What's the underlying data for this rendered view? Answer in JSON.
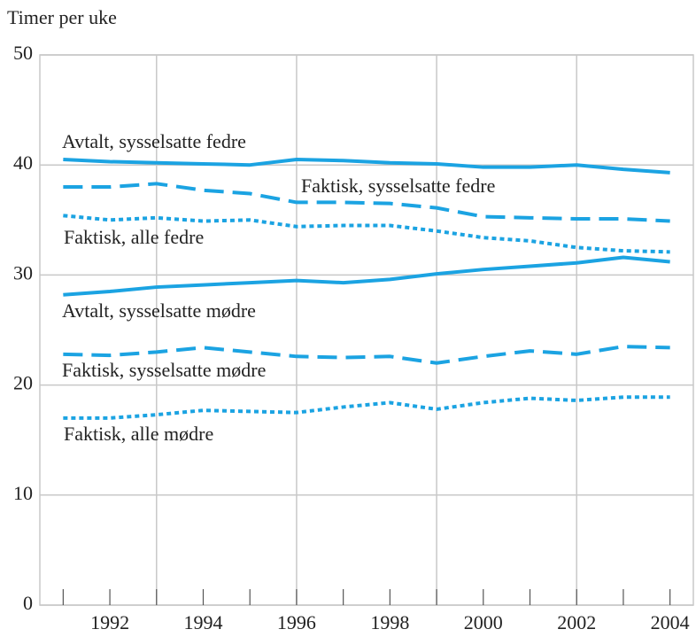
{
  "chart_data": {
    "type": "line",
    "y_label": "Timer per uke",
    "x": [
      1991,
      1992,
      1993,
      1994,
      1995,
      1996,
      1997,
      1998,
      1999,
      2000,
      2001,
      2002,
      2003,
      2004
    ],
    "xlim": [
      1990.5,
      2004.5
    ],
    "xticks": [
      1992,
      1994,
      1996,
      1998,
      2000,
      2002,
      2004
    ],
    "xminorticks": [
      1991,
      1992,
      1993,
      1994,
      1995,
      1996,
      1997,
      1998,
      1999,
      2000,
      2001,
      2002,
      2003,
      2004
    ],
    "xgrid": [
      1993,
      1996,
      1999,
      2002
    ],
    "ylim": [
      0,
      50
    ],
    "yticks": [
      0,
      10,
      20,
      30,
      40,
      50
    ],
    "grid": true,
    "series": [
      {
        "name": "Avtalt, sysselsatte fedre",
        "color": "#1ba3e2",
        "dash": "solid",
        "values": [
          40.5,
          40.3,
          40.2,
          40.1,
          40.0,
          40.5,
          40.4,
          40.2,
          40.1,
          39.8,
          39.8,
          40.0,
          39.6,
          39.3
        ]
      },
      {
        "name": "Faktisk, sysselsatte fedre",
        "color": "#1ba3e2",
        "dash": "dashed",
        "values": [
          38.0,
          38.0,
          38.3,
          37.7,
          37.4,
          36.6,
          36.6,
          36.5,
          36.1,
          35.3,
          35.2,
          35.1,
          35.1,
          34.9
        ]
      },
      {
        "name": "Faktisk, alle fedre",
        "color": "#1ba3e2",
        "dash": "dotted",
        "values": [
          35.4,
          35.0,
          35.2,
          34.9,
          35.0,
          34.4,
          34.5,
          34.5,
          34.0,
          33.4,
          33.1,
          32.5,
          32.2,
          32.1
        ]
      },
      {
        "name": "Avtalt, sysselsatte mødre",
        "color": "#1ba3e2",
        "dash": "solid",
        "values": [
          28.2,
          28.5,
          28.9,
          29.1,
          29.3,
          29.5,
          29.3,
          29.6,
          30.1,
          30.5,
          30.8,
          31.1,
          31.6,
          31.2
        ]
      },
      {
        "name": "Faktisk, sysselsatte mødre",
        "color": "#1ba3e2",
        "dash": "dashed",
        "values": [
          22.8,
          22.7,
          23.0,
          23.4,
          23.0,
          22.6,
          22.5,
          22.6,
          22.0,
          22.6,
          23.1,
          22.8,
          23.5,
          23.4
        ]
      },
      {
        "name": "Faktisk, alle mødre",
        "color": "#1ba3e2",
        "dash": "dotted",
        "values": [
          17.0,
          17.0,
          17.3,
          17.7,
          17.6,
          17.5,
          18.0,
          18.4,
          17.8,
          18.4,
          18.8,
          18.6,
          18.9,
          18.9
        ]
      }
    ]
  }
}
